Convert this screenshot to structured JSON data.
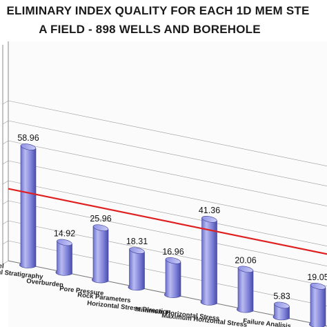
{
  "chart_data": {
    "type": "bar",
    "title_lines": [
      "ELIMINARY INDEX QUALITY FOR EACH 1D MEM STE",
      "A FIELD  - 898 WELLS AND BOREHOLE"
    ],
    "categories": [
      "Model",
      "ical Stratigraphy",
      "Overburden",
      "Pore Pressure",
      "Rock Parameters",
      "Horizontal Stress Direction",
      "Minimum Horizontal Stress",
      "Maximum Horizontal Stress",
      "Failure Analisis"
    ],
    "series": [
      {
        "values": [
          58.96,
          14.92,
          25.96,
          18.31,
          16.96,
          41.36,
          20.06,
          5.83,
          19.05
        ],
        "value_labels": [
          "58.96",
          "14.92",
          "25.96",
          "18.31",
          "16.96",
          "41.36",
          "20.06",
          "5.83",
          "19.05"
        ],
        "color": "#7b7fd6"
      }
    ],
    "reference_line": {
      "value": 36,
      "color": "#e02020"
    },
    "ylim": [
      0,
      80
    ],
    "grid": true,
    "style": "3d-cylinder"
  }
}
